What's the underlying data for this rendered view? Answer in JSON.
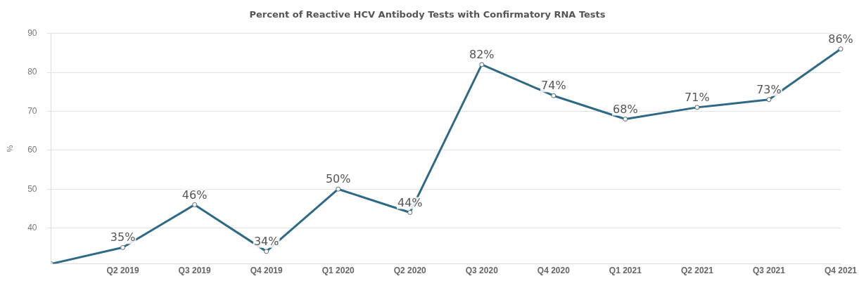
{
  "chart_data": {
    "type": "line",
    "title": "Percent of Reactive HCV Antibody Tests with Confirmatory RNA Tests",
    "ylabel": "%",
    "categories": [
      null,
      "Q2 2019",
      "Q3 2019",
      "Q4 2019",
      "Q1 2020",
      "Q2 2020",
      "Q3 2020",
      "Q4 2020",
      "Q1 2021",
      "Q2 2021",
      "Q3 2021",
      "Q4 2021"
    ],
    "series": [
      {
        "color": "#2e6a85",
        "values": [
          30.8,
          35,
          46,
          34,
          50,
          44,
          82,
          74,
          68,
          71,
          73,
          86
        ],
        "value_labels": [
          null,
          "35%",
          "46%",
          "34%",
          "50%",
          "44%",
          "82%",
          "74%",
          "68%",
          "71%",
          "73%",
          "86%"
        ]
      }
    ],
    "ylim": [
      30.8,
      90
    ],
    "yticks": [
      40,
      50,
      60,
      70,
      80,
      90
    ],
    "grid": "y",
    "marker": "circle",
    "line_style": "solid",
    "legend": false
  }
}
